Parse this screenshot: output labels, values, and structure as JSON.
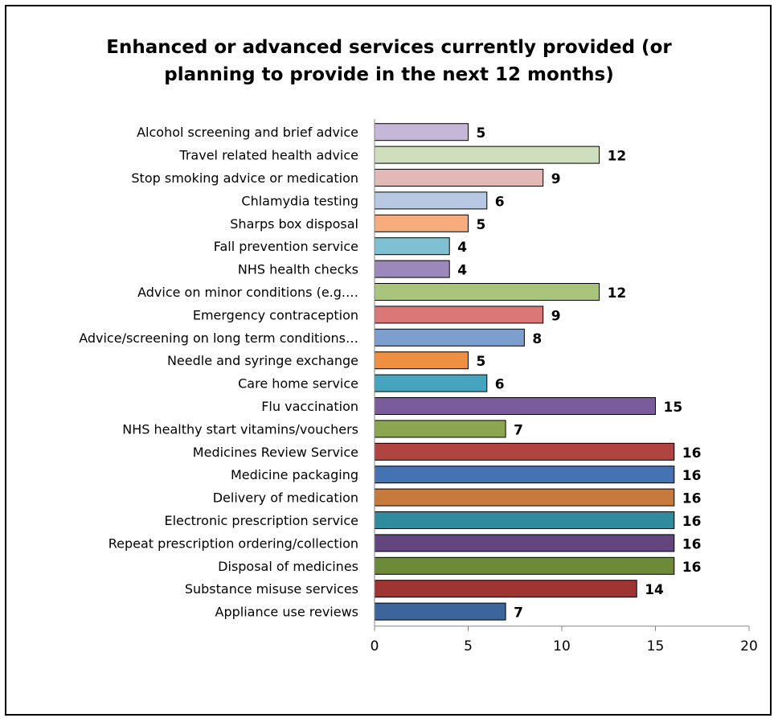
{
  "chart_data": {
    "type": "bar",
    "orientation": "horizontal",
    "title_lines": [
      "Enhanced or advanced services currently provided (or",
      "planning to provide in the next 12 months)"
    ],
    "categories": [
      "Alcohol screening and brief advice",
      "Travel related health advice",
      "Stop smoking advice or medication",
      "Chlamydia testing",
      "Sharps box disposal",
      "Fall prevention service",
      "NHS health checks",
      "Advice on minor conditions (e.g.…",
      "Emergency contraception",
      "Advice/screening on long term conditions…",
      "Needle and syringe exchange",
      "Care home service",
      "Flu vaccination",
      "NHS healthy start vitamins/vouchers",
      "Medicines Review Service",
      "Medicine packaging",
      "Delivery of medication",
      "Electronic prescription service",
      "Repeat prescription ordering/collection",
      "Disposal of medicines",
      "Substance misuse services",
      "Appliance use reviews"
    ],
    "values": [
      5,
      12,
      9,
      6,
      5,
      4,
      4,
      12,
      9,
      8,
      5,
      6,
      15,
      7,
      16,
      16,
      16,
      16,
      16,
      16,
      14,
      7
    ],
    "colors": [
      "#c4b8d6",
      "#cfdfbe",
      "#e3b9b8",
      "#b8c8e2",
      "#f7ac7d",
      "#7fc1d2",
      "#9d88bc",
      "#a9c57c",
      "#d97876",
      "#7c9fcf",
      "#ef8f42",
      "#45a5bf",
      "#7a5c9c",
      "#8ba64f",
      "#b04441",
      "#4472b2",
      "#c77a3c",
      "#318b9e",
      "#63467e",
      "#6c8a37",
      "#9e3532",
      "#3c659b"
    ],
    "xlim": [
      0,
      20
    ],
    "xticks": [
      0,
      5,
      10,
      15,
      20
    ],
    "grid": false,
    "legend": "none",
    "data_labels": true
  }
}
